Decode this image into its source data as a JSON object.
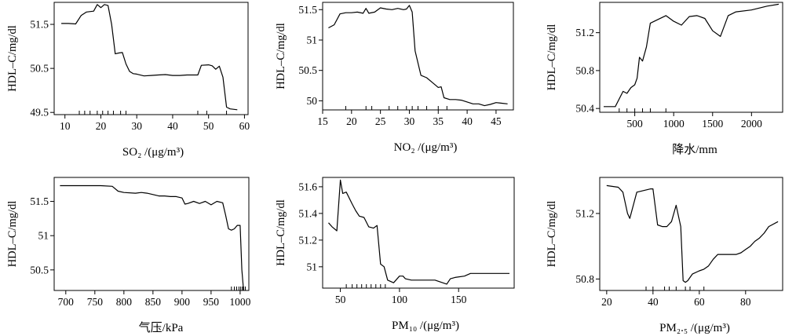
{
  "figure": {
    "panels": [
      {
        "ylabel": "HDL–C/mg/dl",
        "xlabel": "SO₂ /(μg/m³)",
        "chart_data": {
          "type": "line",
          "xlim": [
            7,
            61
          ],
          "ylim": [
            49.45,
            52.0
          ],
          "xticks": [
            10,
            20,
            30,
            40,
            50,
            60
          ],
          "yticks": [
            49.5,
            50.5,
            51.5
          ],
          "rug": [
            14,
            15.5,
            17,
            19,
            20.5,
            22,
            23.5,
            25.5,
            27,
            47,
            49.5,
            55
          ],
          "x": [
            9,
            11,
            13,
            14.5,
            16,
            18,
            19,
            20,
            21,
            22,
            23,
            24,
            25,
            26,
            27,
            28,
            29,
            30,
            32,
            34,
            36,
            38,
            40,
            42,
            44,
            46,
            47,
            48,
            50,
            51,
            52,
            53,
            54,
            55,
            56,
            58
          ],
          "y": [
            51.52,
            51.52,
            51.51,
            51.7,
            51.78,
            51.8,
            51.95,
            51.88,
            51.95,
            51.93,
            51.5,
            50.83,
            50.85,
            50.86,
            50.6,
            50.43,
            50.38,
            50.37,
            50.33,
            50.34,
            50.35,
            50.36,
            50.34,
            50.34,
            50.35,
            50.35,
            50.35,
            50.57,
            50.58,
            50.56,
            50.48,
            50.55,
            50.3,
            49.62,
            49.58,
            49.56
          ]
        }
      },
      {
        "ylabel": "HDL–C/mg/dl",
        "xlabel": "NO₂ /(μg/m³)",
        "chart_data": {
          "type": "line",
          "xlim": [
            15,
            48
          ],
          "ylim": [
            49.85,
            51.62
          ],
          "xticks": [
            15,
            20,
            25,
            30,
            35,
            40,
            45
          ],
          "yticks": [
            50.0,
            50.5,
            51.0,
            51.5
          ],
          "rug": [
            19,
            22.5,
            23.5,
            26.5,
            28,
            29.5,
            30.5,
            31.5,
            33,
            35,
            36.5
          ],
          "x": [
            16,
            17,
            18,
            19,
            20,
            21,
            22,
            22.5,
            23,
            24,
            25,
            26,
            27,
            28,
            29,
            29.5,
            30,
            30.5,
            31,
            32,
            33,
            34,
            35,
            35.5,
            36,
            37,
            38,
            39,
            40,
            41,
            42,
            43,
            44,
            45,
            46,
            47
          ],
          "y": [
            51.2,
            51.25,
            51.43,
            51.45,
            51.45,
            51.46,
            51.44,
            51.52,
            51.44,
            51.46,
            51.53,
            51.51,
            51.5,
            51.52,
            51.5,
            51.51,
            51.57,
            51.46,
            50.82,
            50.42,
            50.38,
            50.3,
            50.22,
            50.23,
            50.05,
            50.02,
            50.02,
            50.01,
            49.98,
            49.95,
            49.95,
            49.92,
            49.94,
            49.97,
            49.96,
            49.95
          ]
        }
      },
      {
        "ylabel": "HDL–C/mg/dl",
        "xlabel": "降水/mm",
        "chart_data": {
          "type": "line",
          "xlim": [
            50,
            2400
          ],
          "ylim": [
            50.36,
            51.52
          ],
          "xticks": [
            500,
            1000,
            1500,
            2000
          ],
          "yticks": [
            50.4,
            50.8,
            51.2
          ],
          "rug": [
            300,
            400,
            500,
            600,
            700,
            900
          ],
          "x": [
            100,
            250,
            350,
            400,
            450,
            500,
            530,
            560,
            600,
            650,
            700,
            800,
            900,
            1000,
            1100,
            1200,
            1300,
            1400,
            1500,
            1600,
            1700,
            1800,
            2000,
            2200,
            2350
          ],
          "y": [
            50.42,
            50.42,
            50.58,
            50.56,
            50.62,
            50.65,
            50.72,
            50.94,
            50.9,
            51.05,
            51.3,
            51.34,
            51.38,
            51.32,
            51.28,
            51.37,
            51.38,
            51.35,
            51.22,
            51.16,
            51.38,
            51.42,
            51.44,
            51.48,
            51.5
          ]
        }
      },
      {
        "ylabel": "HDL–C/mg/dl",
        "xlabel": "气压/kPa",
        "chart_data": {
          "type": "line",
          "xlim": [
            680,
            1015
          ],
          "ylim": [
            50.2,
            51.85
          ],
          "xticks": [
            700,
            750,
            800,
            850,
            900,
            950,
            1000
          ],
          "yticks": [
            50.5,
            51.0,
            51.5
          ],
          "rug": [
            985,
            990,
            994,
            998,
            1001,
            1004,
            1006,
            1009
          ],
          "x": [
            690,
            720,
            760,
            780,
            790,
            800,
            820,
            830,
            840,
            850,
            860,
            870,
            880,
            890,
            900,
            905,
            910,
            920,
            930,
            940,
            950,
            960,
            970,
            975,
            980,
            985,
            990,
            995,
            1000,
            1003,
            1006
          ],
          "y": [
            51.73,
            51.73,
            51.73,
            51.72,
            51.65,
            51.63,
            51.62,
            51.63,
            51.62,
            51.6,
            51.58,
            51.58,
            51.57,
            51.57,
            51.55,
            51.46,
            51.47,
            51.5,
            51.47,
            51.5,
            51.45,
            51.5,
            51.48,
            51.3,
            51.1,
            51.08,
            51.1,
            51.15,
            51.15,
            50.5,
            50.2
          ]
        }
      },
      {
        "ylabel": "HDL–C/mg/dl",
        "xlabel": "PM₁₀ /(μg/m³)",
        "chart_data": {
          "type": "line",
          "xlim": [
            35,
            197
          ],
          "ylim": [
            50.84,
            51.67
          ],
          "xticks": [
            50,
            100,
            150
          ],
          "yticks": [
            51.0,
            51.2,
            51.4,
            51.6
          ],
          "rug": [
            55,
            60,
            64,
            68,
            72,
            76,
            80,
            84,
            88
          ],
          "x": [
            40,
            43,
            47,
            50,
            52,
            55,
            60,
            63,
            66,
            70,
            74,
            78,
            81,
            84,
            87,
            90,
            95,
            100,
            103,
            105,
            110,
            120,
            130,
            140,
            143,
            147,
            155,
            160,
            170,
            180,
            193
          ],
          "y": [
            51.33,
            51.3,
            51.27,
            51.65,
            51.55,
            51.56,
            51.47,
            51.42,
            51.38,
            51.37,
            51.3,
            51.29,
            51.31,
            51.02,
            51.0,
            50.9,
            50.88,
            50.93,
            50.93,
            50.91,
            50.9,
            50.9,
            50.9,
            50.87,
            50.91,
            50.92,
            50.93,
            50.95,
            50.95,
            50.95,
            50.95
          ]
        }
      },
      {
        "ylabel": "HDL–C/mg/dl",
        "xlabel": "PM₂.₅ /(μg/m³)",
        "chart_data": {
          "type": "line",
          "xlim": [
            17,
            96
          ],
          "ylim": [
            50.73,
            51.42
          ],
          "xticks": [
            20,
            40,
            60,
            80
          ],
          "yticks": [
            50.8,
            51.2
          ],
          "rug": [
            37,
            40,
            45,
            47,
            50,
            54,
            56,
            62
          ],
          "x": [
            20,
            25,
            27,
            29,
            30,
            33,
            36,
            39,
            40,
            42,
            44,
            46,
            48,
            50,
            52,
            53,
            54,
            55,
            57,
            60,
            62,
            64,
            66,
            68,
            70,
            72,
            74,
            76,
            78,
            80,
            82,
            84,
            86,
            88,
            90,
            94
          ],
          "y": [
            51.37,
            51.36,
            51.33,
            51.2,
            51.17,
            51.33,
            51.34,
            51.35,
            51.35,
            51.13,
            51.12,
            51.12,
            51.15,
            51.25,
            51.12,
            50.79,
            50.78,
            50.79,
            50.83,
            50.85,
            50.86,
            50.88,
            50.92,
            50.95,
            50.95,
            50.95,
            50.95,
            50.95,
            50.96,
            50.98,
            51.0,
            51.03,
            51.05,
            51.08,
            51.12,
            51.15
          ]
        }
      }
    ]
  }
}
